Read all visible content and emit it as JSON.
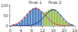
{
  "chart_data": {
    "type": "histogram",
    "bins": [
      0,
      1,
      2,
      3,
      4,
      5,
      6,
      7,
      8,
      9,
      10,
      11,
      12,
      13,
      14,
      15,
      16,
      17,
      18,
      19,
      20,
      21,
      22,
      23,
      24
    ],
    "counts": [
      2,
      5,
      10,
      18,
      30,
      45,
      62,
      78,
      88,
      92,
      85,
      74,
      68,
      72,
      80,
      86,
      82,
      70,
      55,
      38,
      24,
      12,
      6,
      2
    ],
    "colors": [
      "#4f81bd",
      "#4f81bd",
      "#4f81bd",
      "#4f81bd",
      "#4f81bd",
      "#4f81bd",
      "#4f81bd",
      "#4f81bd",
      "#4f81bd",
      "#4f81bd",
      "#4f81bd",
      "#4f81bd",
      "#9bbb59",
      "#9bbb59",
      "#9bbb59",
      "#9bbb59",
      "#9bbb59",
      "#9bbb59",
      "#9bbb59",
      "#9bbb59",
      "#9bbb59",
      "#9bbb59",
      "#9bbb59",
      "#9bbb59"
    ],
    "series": [
      {
        "type": "line",
        "color": "#c0504d",
        "x": [
          0.5,
          1.5,
          2.5,
          3.5,
          4.5,
          5.5,
          6.5,
          7.5,
          8.5,
          9.5,
          10.5,
          11.5,
          12.5,
          13.5,
          14.5,
          15.5,
          16.5,
          17.5,
          18.5,
          19.5,
          20.5,
          21.5,
          22.5,
          23.5
        ],
        "values": [
          2,
          5,
          10,
          18,
          30,
          45,
          60,
          74,
          84,
          88,
          84,
          74,
          60,
          45,
          30,
          18,
          10,
          5,
          2,
          1,
          0,
          0,
          0,
          0
        ]
      },
      {
        "type": "line",
        "color": "#1f3f99",
        "x": [
          0.5,
          1.5,
          2.5,
          3.5,
          4.5,
          5.5,
          6.5,
          7.5,
          8.5,
          9.5,
          10.5,
          11.5,
          12.5,
          13.5,
          14.5,
          15.5,
          16.5,
          17.5,
          18.5,
          19.5,
          20.5,
          21.5,
          22.5,
          23.5
        ],
        "values": [
          0,
          0,
          0,
          0,
          0,
          0,
          1,
          2,
          5,
          10,
          18,
          30,
          45,
          60,
          72,
          80,
          80,
          72,
          58,
          40,
          25,
          13,
          6,
          2
        ]
      }
    ],
    "annotations": [
      {
        "text": "Peak 1",
        "x": 9.5,
        "y": 100
      },
      {
        "text": "Peak 2",
        "x": 16.5,
        "y": 97
      }
    ],
    "xlim": [
      0,
      24
    ],
    "xticks": [
      0,
      4,
      8,
      12,
      16,
      20,
      24
    ],
    "ylim": [
      0,
      110
    ],
    "yticks": [
      0,
      50,
      100
    ],
    "grid": false
  }
}
